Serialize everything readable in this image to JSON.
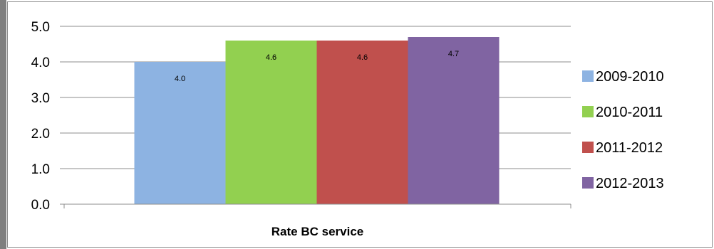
{
  "chart_data": {
    "type": "bar",
    "title": "",
    "xlabel": "",
    "ylabel": "",
    "categories": [
      "Rate BC service"
    ],
    "series": [
      {
        "name": "2009-2010",
        "values": [
          4.0
        ],
        "label": "4.0",
        "color": "#8db3e2"
      },
      {
        "name": "2010-2011",
        "values": [
          4.6
        ],
        "label": "4.6",
        "color": "#92d050"
      },
      {
        "name": "2011-2012",
        "values": [
          4.6
        ],
        "label": "4.6",
        "color": "#c0504d"
      },
      {
        "name": "2012-2013",
        "values": [
          4.7
        ],
        "label": "4.7",
        "color": "#8064a2"
      }
    ],
    "ylim": [
      0,
      5
    ],
    "yticks": [
      "0.0",
      "1.0",
      "2.0",
      "3.0",
      "4.0",
      "5.0"
    ],
    "grid": true,
    "legend_position": "right"
  }
}
